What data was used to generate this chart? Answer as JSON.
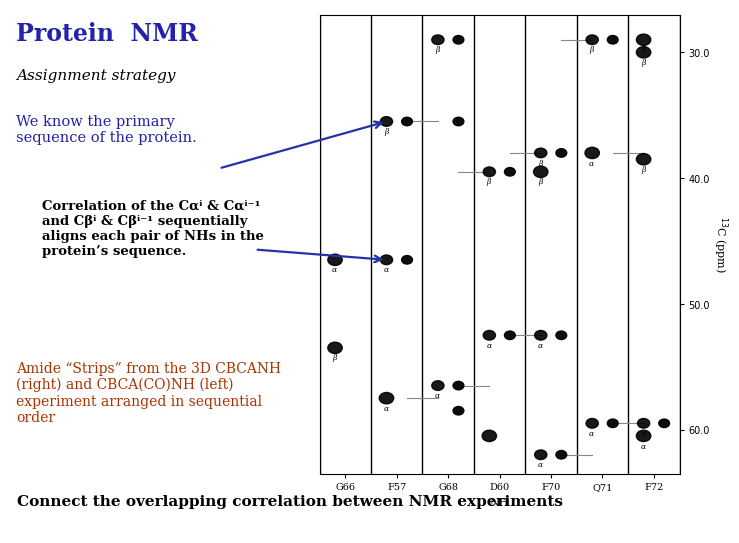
{
  "title": "Protein  NMR",
  "subtitle": "Assignment strategy",
  "body_text1": "We know the primary\nsequence of the protein.",
  "body_text2": "Correlation of the Cαⁱ & Cαⁱ⁻¹\nand Cβⁱ & Cβⁱ⁻¹ sequentially\naligns each pair of NHs in the\nprotein’s sequence.",
  "body_text3": "Amide “Strips” from the 3D CBCANH\n(right) and CBCA(CO)NH (left)\nexperiment arranged in sequential\norder",
  "footer_text": "Connect the overlapping correlation between NMR experiments",
  "title_color": "#2222aa",
  "subtitle_color": "#000000",
  "body1_color": "#2222aa",
  "body2_color": "#000000",
  "body3_color": "#aa3300",
  "footer_color": "#000000",
  "bg_color": "#ffffff",
  "strip_labels": [
    "G66",
    "F57",
    "G68",
    "D60",
    "F70",
    "Q71",
    "F72"
  ],
  "ylabel": "$^{13}$C (ppm)",
  "xlabel": "NH",
  "ymin": 27.0,
  "ymax": 63.5,
  "yticks": [
    30.0,
    40.0,
    50.0,
    60.0
  ],
  "arrow_color": "#2233aa",
  "dots": [
    {
      "strip": 0,
      "y": 46.5,
      "label": "α",
      "side": "L"
    },
    {
      "strip": 0,
      "y": 53.5,
      "label": "β",
      "side": "L"
    },
    {
      "strip": 1,
      "y": 35.5,
      "label": "β",
      "side": "both"
    },
    {
      "strip": 1,
      "y": 46.5,
      "label": "α",
      "side": "both"
    },
    {
      "strip": 1,
      "y": 57.5,
      "label": "α",
      "side": "L"
    },
    {
      "strip": 2,
      "y": 29.0,
      "label": "β",
      "side": "both"
    },
    {
      "strip": 2,
      "y": 35.5,
      "label": "β",
      "side": "R"
    },
    {
      "strip": 2,
      "y": 56.5,
      "label": "α",
      "side": "both"
    },
    {
      "strip": 2,
      "y": 58.5,
      "label": "α",
      "side": "R"
    },
    {
      "strip": 3,
      "y": 39.5,
      "label": "β",
      "side": "both"
    },
    {
      "strip": 3,
      "y": 52.5,
      "label": "α",
      "side": "both"
    },
    {
      "strip": 3,
      "y": 60.5,
      "label": "",
      "side": "L"
    },
    {
      "strip": 4,
      "y": 38.0,
      "label": "β",
      "side": "both"
    },
    {
      "strip": 4,
      "y": 39.5,
      "label": "β",
      "side": "L"
    },
    {
      "strip": 4,
      "y": 52.5,
      "label": "α",
      "side": "both"
    },
    {
      "strip": 4,
      "y": 62.0,
      "label": "α",
      "side": "both"
    },
    {
      "strip": 5,
      "y": 29.0,
      "label": "β",
      "side": "both"
    },
    {
      "strip": 5,
      "y": 38.0,
      "label": "α",
      "side": "L"
    },
    {
      "strip": 5,
      "y": 59.5,
      "label": "α",
      "side": "both"
    },
    {
      "strip": 6,
      "y": 29.0,
      "label": "β",
      "side": "L"
    },
    {
      "strip": 6,
      "y": 30.0,
      "label": "β",
      "side": "L"
    },
    {
      "strip": 6,
      "y": 38.5,
      "label": "β",
      "side": "L"
    },
    {
      "strip": 6,
      "y": 59.5,
      "label": "α",
      "side": "both"
    },
    {
      "strip": 6,
      "y": 60.5,
      "label": "α",
      "side": "L"
    }
  ],
  "connections": [
    {
      "strip_a": 1,
      "strip_b": 2,
      "y": 35.5
    },
    {
      "strip_a": 1,
      "strip_b": 2,
      "y": 57.5
    },
    {
      "strip_a": 2,
      "strip_b": 3,
      "y": 39.5
    },
    {
      "strip_a": 2,
      "strip_b": 3,
      "y": 56.5
    },
    {
      "strip_a": 3,
      "strip_b": 4,
      "y": 38.0
    },
    {
      "strip_a": 3,
      "strip_b": 4,
      "y": 52.5
    },
    {
      "strip_a": 4,
      "strip_b": 5,
      "y": 29.0
    },
    {
      "strip_a": 4,
      "strip_b": 5,
      "y": 62.0
    },
    {
      "strip_a": 5,
      "strip_b": 6,
      "y": 59.5
    },
    {
      "strip_a": 5,
      "strip_b": 6,
      "y": 38.0
    }
  ]
}
